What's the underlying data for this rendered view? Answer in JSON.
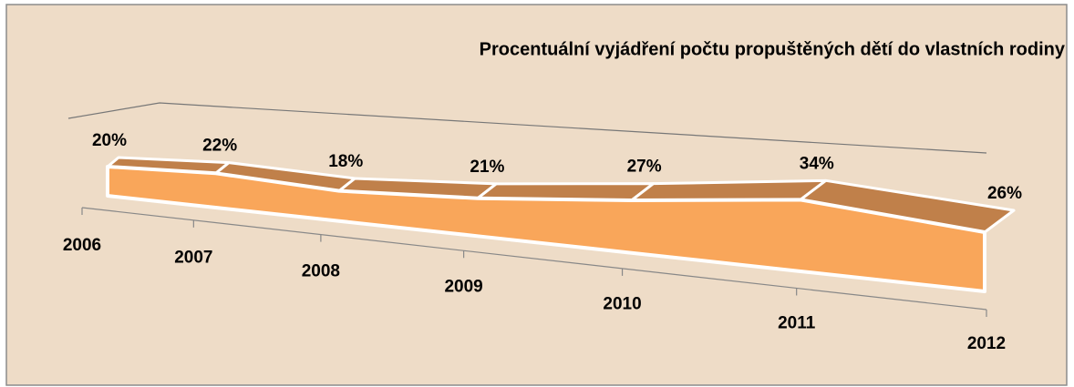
{
  "chart_data": {
    "type": "area3d",
    "title": "Procentuální vyjádření počtu propuštěných dětí do vlastních rodiny",
    "categories": [
      "2006",
      "2007",
      "2008",
      "2009",
      "2010",
      "2011",
      "2012"
    ],
    "values": [
      20,
      22,
      18,
      21,
      27,
      34,
      26
    ],
    "value_labels": [
      "20%",
      "22%",
      "18%",
      "21%",
      "27%",
      "34%",
      "26%"
    ],
    "color": "#f9a65a",
    "top_color": "#c0804a"
  }
}
